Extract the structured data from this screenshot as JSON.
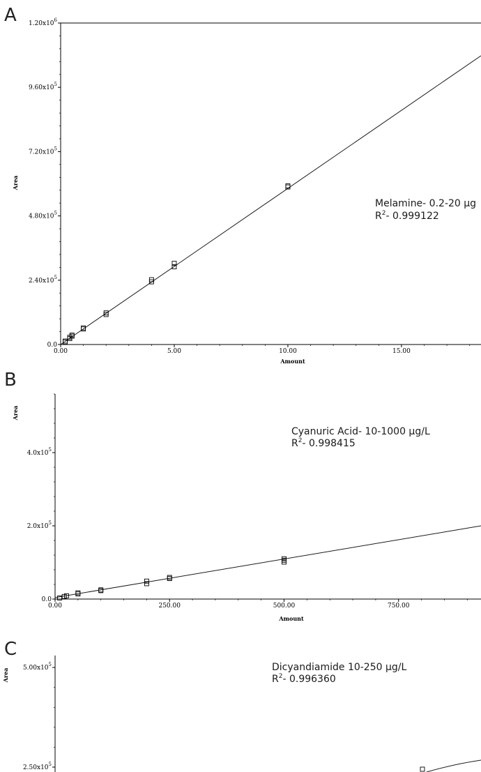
{
  "chart_data": [
    {
      "type": "scatter",
      "panel": "A",
      "xlabel": "Amount",
      "ylabel": "Area",
      "xlim": [
        0,
        18.5
      ],
      "ylim": [
        0,
        1200000
      ],
      "xticks": [
        0,
        5,
        10,
        15
      ],
      "xtick_labels": [
        "0.00",
        "5.00",
        "10.00",
        "15.00"
      ],
      "yticks": [
        0,
        240000,
        480000,
        720000,
        960000,
        1200000
      ],
      "ytick_labels": [
        {
          "mant": "0.0",
          "exp": ""
        },
        {
          "mant": "2.40x10",
          "exp": "5"
        },
        {
          "mant": "4.80x10",
          "exp": "5"
        },
        {
          "mant": "7.20x10",
          "exp": "5"
        },
        {
          "mant": "9.60x10",
          "exp": "5"
        },
        {
          "mant": "1.20x10",
          "exp": "6"
        }
      ],
      "points": [
        [
          0.2,
          9000
        ],
        [
          0.2,
          13000
        ],
        [
          0.4,
          22000
        ],
        [
          0.4,
          27000
        ],
        [
          0.5,
          31000
        ],
        [
          0.5,
          35000
        ],
        [
          1.0,
          58000
        ],
        [
          1.0,
          62000
        ],
        [
          2.0,
          112000
        ],
        [
          2.0,
          118000
        ],
        [
          4.0,
          234000
        ],
        [
          4.0,
          242000
        ],
        [
          5.0,
          290000
        ],
        [
          5.0,
          303000
        ],
        [
          10.0,
          588000
        ],
        [
          10.0,
          592000
        ]
      ],
      "fit": {
        "x": [
          0,
          18.5
        ],
        "y": [
          0,
          1078000
        ]
      },
      "annotation": [
        "Melamine- 0.2-20 µg",
        "- 0.999122"
      ]
    },
    {
      "type": "scatter",
      "panel": "B",
      "xlabel": "Amount",
      "ylabel": "Area",
      "xlim": [
        0,
        930
      ],
      "ylim": [
        0,
        560000
      ],
      "xticks": [
        0,
        250,
        500,
        750
      ],
      "xtick_labels": [
        "0.00",
        "250.00",
        "500.00",
        "750.00"
      ],
      "yticks": [
        0,
        200000,
        400000
      ],
      "ytick_labels": [
        {
          "mant": "0.0",
          "exp": ""
        },
        {
          "mant": "2.0x10",
          "exp": "5"
        },
        {
          "mant": "4.0x10",
          "exp": "5"
        }
      ],
      "points": [
        [
          10,
          3000
        ],
        [
          20,
          7000
        ],
        [
          25,
          9000
        ],
        [
          50,
          14000
        ],
        [
          50,
          17000
        ],
        [
          100,
          23000
        ],
        [
          100,
          25000
        ],
        [
          200,
          42000
        ],
        [
          200,
          49000
        ],
        [
          250,
          56000
        ],
        [
          250,
          59000
        ],
        [
          500,
          101000
        ],
        [
          500,
          106000
        ],
        [
          500,
          110000
        ]
      ],
      "fit": {
        "x": [
          0,
          930
        ],
        "y": [
          4000,
          200000
        ]
      },
      "annotation": [
        "Cyanuric Acid- 10-1000 µg/L",
        "- 0.998415"
      ]
    },
    {
      "type": "scatter",
      "panel": "C",
      "xlabel": "",
      "ylabel": "Area",
      "ylim": [
        250000,
        530000
      ],
      "yticks": [
        250000,
        500000
      ],
      "ytick_labels": [
        {
          "mant": "2.50x10",
          "exp": "5"
        },
        {
          "mant": "5.00x10",
          "exp": "5"
        }
      ],
      "points_px_note": "",
      "annotation": [
        "Dicyandiamide 10-250 µg/L",
        "- 0.996360"
      ]
    }
  ],
  "panels": {
    "a": {
      "letter": "A"
    },
    "b": {
      "letter": "B"
    },
    "c": {
      "letter": "C"
    }
  }
}
